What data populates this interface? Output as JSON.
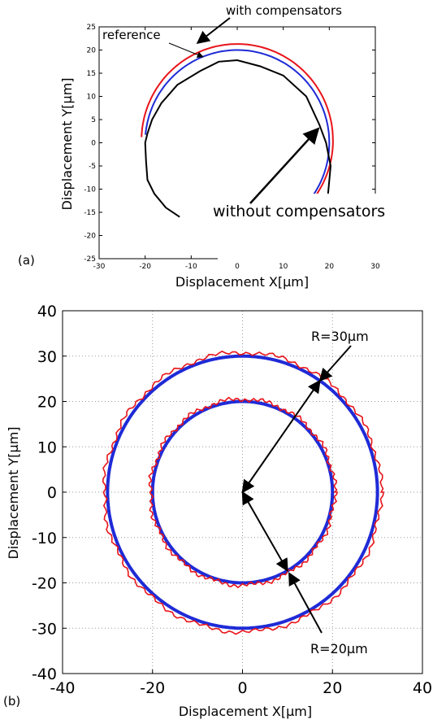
{
  "panels": {
    "a": {
      "tag": "(a)"
    },
    "b": {
      "tag": "(b)"
    }
  },
  "colors": {
    "red": "#e8141a",
    "blue": "#1f2bd6",
    "black": "#000000",
    "grid": "#9a9a9a"
  },
  "chart_data": [
    {
      "id": "a",
      "type": "line",
      "xlabel": "Displacement X[µm]",
      "ylabel": "Displacement Y[µm]",
      "xlim": [
        -30,
        30
      ],
      "ylim": [
        -25,
        25
      ],
      "xticks": [
        -30,
        -20,
        -10,
        0,
        10,
        20,
        30
      ],
      "yticks": [
        -25,
        -20,
        -15,
        -10,
        -5,
        0,
        5,
        10,
        15,
        20,
        25
      ],
      "grid": false,
      "annotations": {
        "with": "with compensators",
        "reference": "reference",
        "without": "without compensators"
      },
      "series": [
        {
          "role": "reference",
          "color": "blue",
          "shape": "circle",
          "center": [
            0,
            0
          ],
          "radius": 20,
          "visible_arc_deg": [
            -55,
            175
          ]
        },
        {
          "role": "with compensators",
          "color": "red",
          "shape": "circle",
          "center": [
            0,
            0.5
          ],
          "radius": 20.8,
          "visible_arc_deg": [
            -58,
            178
          ]
        },
        {
          "role": "without compensators",
          "color": "black",
          "points": [
            [
              19.5,
              -13.5
            ],
            [
              20.3,
              -5
            ],
            [
              19.3,
              0
            ],
            [
              17.8,
              4
            ],
            [
              15,
              10
            ],
            [
              10,
              14.5
            ],
            [
              5,
              16.5
            ],
            [
              0,
              17.8
            ],
            [
              -4,
              17.5
            ],
            [
              -8,
              15.5
            ],
            [
              -13,
              12.5
            ],
            [
              -16.5,
              8.5
            ],
            [
              -18.5,
              5
            ],
            [
              -19.5,
              2
            ],
            [
              -20,
              0
            ],
            [
              -19.8,
              -4
            ],
            [
              -19.5,
              -8
            ],
            [
              -18,
              -11
            ],
            [
              -15.5,
              -14
            ],
            [
              -12.5,
              -16
            ]
          ]
        }
      ]
    },
    {
      "id": "b",
      "type": "line",
      "xlabel": "Displacement X[µm]",
      "ylabel": "Displacement Y[µm]",
      "xlim": [
        -40,
        40
      ],
      "ylim": [
        -40,
        40
      ],
      "xticks": [
        -40,
        -20,
        0,
        20,
        40
      ],
      "yticks": [
        -40,
        -30,
        -20,
        -10,
        0,
        10,
        20,
        30,
        40
      ],
      "grid": true,
      "annotations": {
        "r30": "R=30µm",
        "r20": "R=20µm"
      },
      "series": [
        {
          "role": "reference R=30",
          "color": "blue",
          "shape": "circle",
          "center": [
            0,
            0
          ],
          "radius": 30
        },
        {
          "role": "reference R=20",
          "color": "blue",
          "shape": "circle",
          "center": [
            0,
            0
          ],
          "radius": 20
        },
        {
          "role": "measured R=30",
          "color": "red",
          "shape": "circle",
          "center": [
            0,
            0
          ],
          "radius": 30.8
        },
        {
          "role": "measured R=20",
          "color": "red",
          "shape": "circle",
          "center": [
            0,
            0
          ],
          "radius": 20.5
        }
      ]
    }
  ]
}
